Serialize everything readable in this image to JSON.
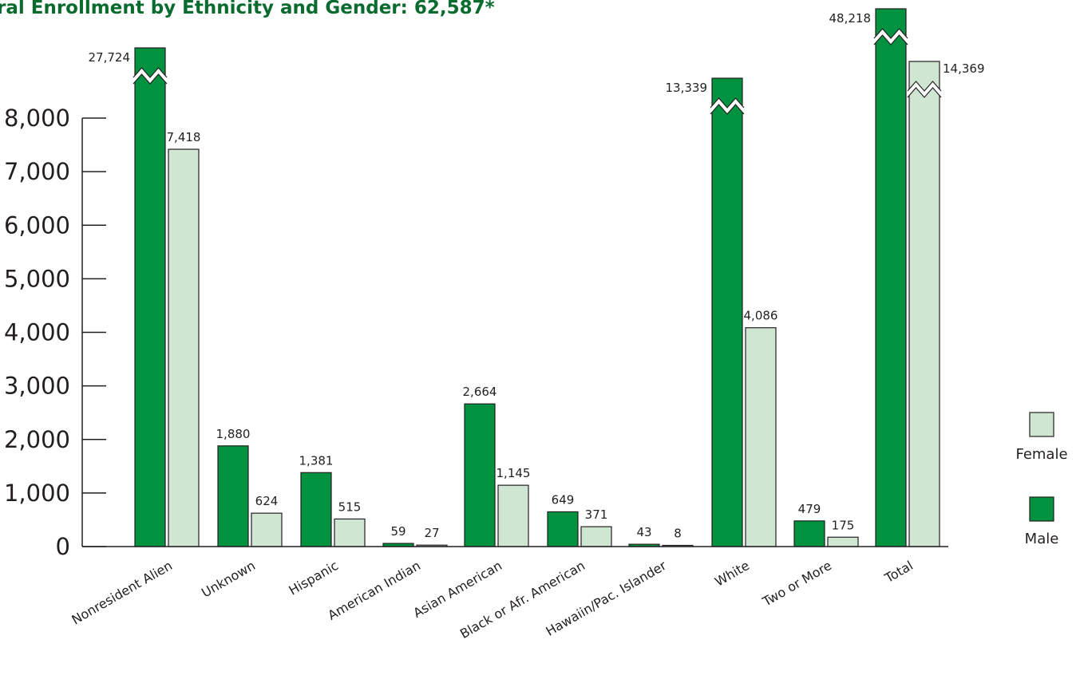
{
  "chart_data": {
    "type": "bar",
    "title": "ral Enrollment by Ethnicity and Gender: 62,587*",
    "categories": [
      "Nonresident Alien",
      "Unknown",
      "Hispanic",
      "American Indian",
      "Asian American",
      "Black or Afr. American",
      "Hawaiin/Pac. Islander",
      "White",
      "Two or More",
      "Total"
    ],
    "series": [
      {
        "name": "Male",
        "color": "#00923f",
        "values": [
          27724,
          1880,
          1381,
          59,
          2664,
          649,
          43,
          13339,
          479,
          48218
        ],
        "labels": [
          "27,724",
          "1,880",
          "1,381",
          "59",
          "2,664",
          "649",
          "43",
          "13,339",
          "479",
          "48,218"
        ]
      },
      {
        "name": "Female",
        "color": "#cfe6d3",
        "values": [
          7418,
          624,
          515,
          27,
          1145,
          371,
          8,
          4086,
          175,
          14369
        ],
        "labels": [
          "7,418",
          "624",
          "515",
          "27",
          "1,145",
          "371",
          "8",
          "4,086",
          "175",
          "14,369"
        ]
      }
    ],
    "y_ticks": [
      "0",
      "1,000",
      "2,000",
      "3,000",
      "4,000",
      "5,000",
      "6,000",
      "7,000",
      "8,000"
    ],
    "ylim": [
      0,
      8000
    ],
    "axis_break": true,
    "grid": false,
    "legend_position": "right"
  }
}
